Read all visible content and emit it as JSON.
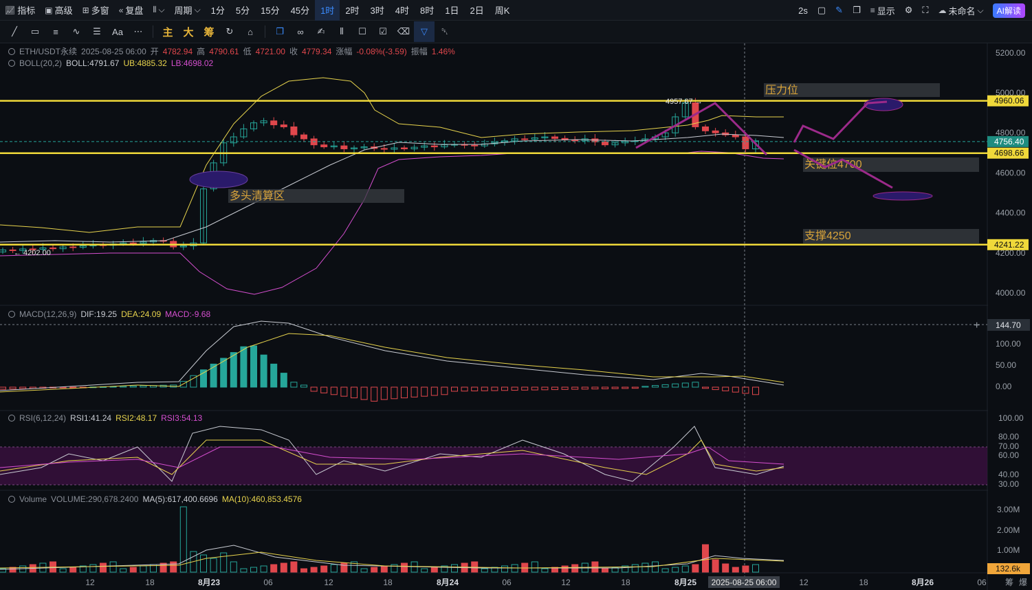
{
  "top_toolbar": {
    "indicators_label": "指标",
    "advanced_label": "高级",
    "multi_window_label": "多窗",
    "replay_label": "复盘",
    "chart_type_label": "",
    "period_label": "周期",
    "intervals": [
      "1分",
      "5分",
      "15分",
      "45分",
      "1时",
      "2时",
      "3时",
      "4时",
      "8时",
      "1日",
      "2日",
      "周K"
    ],
    "active_interval": "1时",
    "refresh_label": "2s",
    "display_label": "显示",
    "layout_name": "未命名",
    "ai_label": "AI解读"
  },
  "drawing_toolbar": {
    "main_label": "主",
    "big_label": "大",
    "chip_label": "筹",
    "font_label": "Aa"
  },
  "main_legend": {
    "symbol": "ETH/USDT永续",
    "datetime": "2025-08-25 06:00",
    "open_label": "开",
    "open": "4782.94",
    "high_label": "高",
    "high": "4790.61",
    "low_label": "低",
    "low": "4721.00",
    "close_label": "收",
    "close": "4779.34",
    "change_label": "涨幅",
    "change": "-0.08%(-3.59)",
    "amplitude_label": "振幅",
    "amplitude": "1.46%"
  },
  "boll_legend": {
    "name": "BOLL(20,2)",
    "boll": "BOLL:4791.67",
    "ub": "UB:4885.32",
    "lb": "LB:4698.02"
  },
  "macd_legend": {
    "name": "MACD(12,26,9)",
    "dif": "DIF:19.25",
    "dea": "DEA:24.09",
    "macd": "MACD:-9.68"
  },
  "rsi_legend": {
    "name": "RSI(6,12,24)",
    "rsi1": "RSI1:41.24",
    "rsi2": "RSI2:48.17",
    "rsi3": "RSI3:54.13"
  },
  "vol_legend": {
    "name": "Volume",
    "volume": "VOLUME:290,678.2400",
    "ma5": "MA(5):617,400.6696",
    "ma10": "MA(10):460,853.4576"
  },
  "annotations": {
    "pressure": "压力位",
    "key_level": "关键位4700",
    "support": "支撑4250",
    "long_liquidation": "多头清算区",
    "high_marker": "4957.67",
    "low_marker": "4202.00"
  },
  "price_axis": {
    "ticks": [
      "5200.00",
      "5000.00",
      "4800.00",
      "4600.00",
      "4400.00",
      "4200.00",
      "4000.00"
    ],
    "tick_values": [
      5200,
      5000,
      4800,
      4600,
      4400,
      4200,
      4000
    ],
    "tags": [
      {
        "text": "4960.06",
        "value": 4960.06,
        "kind": "yellow"
      },
      {
        "text": "4756.40",
        "value": 4756.4,
        "kind": "teal"
      },
      {
        "text": "4698.66",
        "value": 4698.66,
        "kind": "yellow"
      },
      {
        "text": "4241.22",
        "value": 4241.22,
        "kind": "yellow"
      }
    ]
  },
  "macd_axis": {
    "ticks": [
      "100.00",
      "50.00",
      "0.00"
    ],
    "cursor_tag": "144.70"
  },
  "rsi_axis": {
    "ticks": [
      "100.00",
      "80.00",
      "70.00",
      "60.00",
      "40.00",
      "30.00"
    ]
  },
  "vol_axis": {
    "ticks": [
      "3.00M",
      "2.00M",
      "1.00M"
    ],
    "tag": "132.6k"
  },
  "time_axis": {
    "labels": [
      "12",
      "18",
      "8月23",
      "06",
      "12",
      "18",
      "8月24",
      "06",
      "12",
      "18",
      "8月25",
      "12",
      "18",
      "8月26",
      "06"
    ],
    "cursor_label": "2025-08-25 06:00",
    "corner_labels": [
      "筹",
      "爆"
    ]
  },
  "colors": {
    "up": "#26a69a",
    "down": "#e0474c",
    "boll_upper": "#e8d44d",
    "boll_mid": "#c9ccd3",
    "boll_lower": "#d64fd0",
    "key_line": "#f0d93a",
    "forecast": "#9c2a8a",
    "active_interval": "#3b8cff"
  }
}
